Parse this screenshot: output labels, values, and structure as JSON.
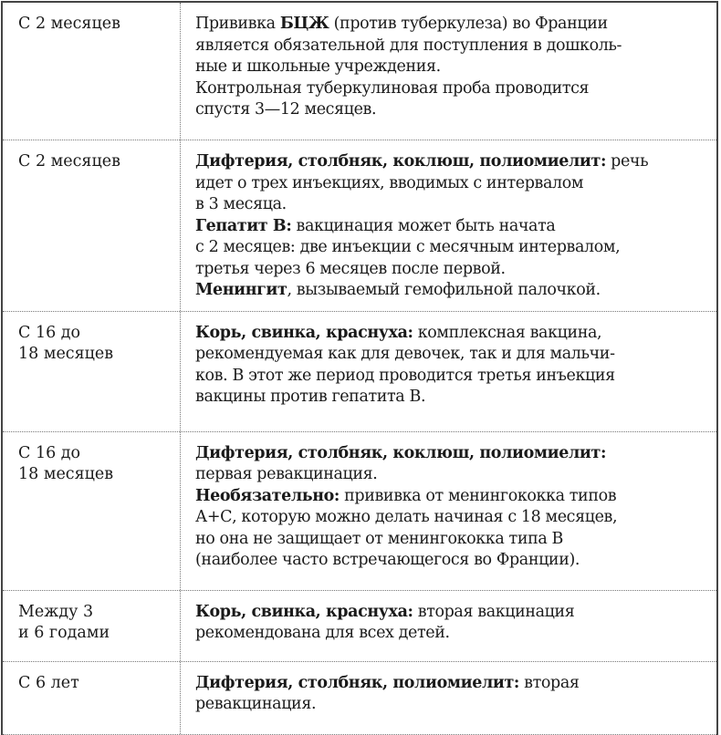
{
  "rows": [
    {
      "age": [
        "С 2 месяцев"
      ],
      "lines": [
        [
          {
            "t": "Прививка "
          },
          {
            "t": "БЦЖ",
            "b": true
          },
          {
            "t": " (против туберкулеза) во Франции"
          }
        ],
        [
          {
            "t": "является обязательной для поступления в дошколь-"
          }
        ],
        [
          {
            "t": "ные и школьные учреждения."
          }
        ],
        [
          {
            "t": "Контрольная туберкулиновая проба проводится"
          }
        ],
        [
          {
            "t": "спустя 3—12 месяцев."
          }
        ]
      ]
    },
    {
      "age": [
        "С 2 месяцев"
      ],
      "lines": [
        [
          {
            "t": "Дифтерия, столбняк, коклюш, полиомиелит:",
            "b": true
          },
          {
            "t": " речь"
          }
        ],
        [
          {
            "t": "идет о трех инъекциях, вводимых с интервалом"
          }
        ],
        [
          {
            "t": "в 3 месяца."
          }
        ],
        [
          {
            "t": "Гепатит В:",
            "b": true
          },
          {
            "t": " вакцинация может быть начата"
          }
        ],
        [
          {
            "t": "с 2 месяцев: две инъекции с месячным интервалом,"
          }
        ],
        [
          {
            "t": "третья через 6 месяцев после первой."
          }
        ],
        [
          {
            "t": "Менингит",
            "b": true
          },
          {
            "t": ", вызываемый гемофильной палочкой."
          }
        ]
      ]
    },
    {
      "age": [
        "С 16 до",
        "18 месяцев"
      ],
      "lines": [
        [
          {
            "t": "Корь, свинка, краснуха:",
            "b": true
          },
          {
            "t": " комплексная вакцина,"
          }
        ],
        [
          {
            "t": "рекомендуемая как для девочек, так и для мальчи-"
          }
        ],
        [
          {
            "t": "ков. В этот же период проводится третья инъекция"
          }
        ],
        [
          {
            "t": "вакцины против гепатита В."
          }
        ]
      ]
    },
    {
      "age": [
        "С 16 до",
        "18 месяцев"
      ],
      "lines": [
        [
          {
            "t": "Дифтерия, столбняк, коклюш, полиомиелит:",
            "b": true
          }
        ],
        [
          {
            "t": "первая ревакцинация."
          }
        ],
        [
          {
            "t": "Необязательно:",
            "b": true
          },
          {
            "t": " прививка от менингококка типов"
          }
        ],
        [
          {
            "t": "А+С, которую можно делать начиная с 18 месяцев,"
          }
        ],
        [
          {
            "t": "но она не защищает от менингококка типа В"
          }
        ],
        [
          {
            "t": "(наиболее часто встречающегося во Франции)."
          }
        ]
      ]
    },
    {
      "age": [
        "Между 3",
        "и 6 годами"
      ],
      "lines": [
        [
          {
            "t": "Корь, свинка, краснуха:",
            "b": true
          },
          {
            "t": " вторая вакцинация"
          }
        ],
        [
          {
            "t": "рекомендована для всех детей."
          }
        ]
      ]
    },
    {
      "age": [
        "С 6 лет"
      ],
      "lines": [
        [
          {
            "t": "Дифтерия, столбняк, полиомиелит:",
            "b": true
          },
          {
            "t": " вторая"
          }
        ],
        [
          {
            "t": "ревакцинация."
          }
        ]
      ]
    }
  ]
}
